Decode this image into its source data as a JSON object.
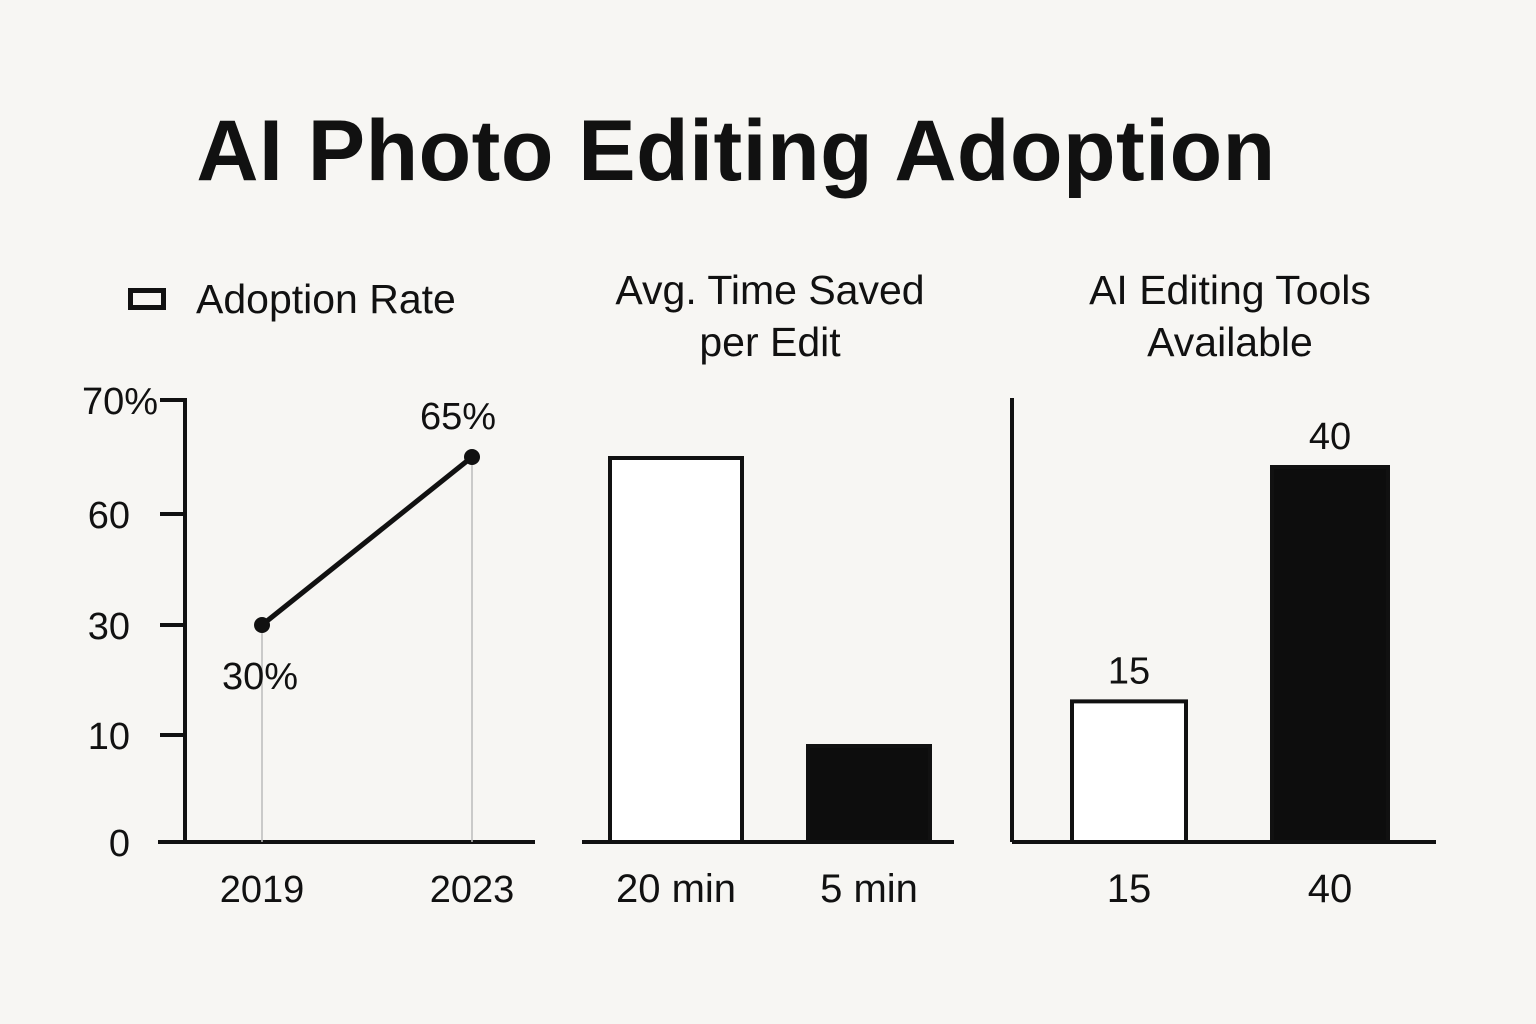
{
  "title": "AI Photo Editing Adoption",
  "chart_data": [
    {
      "type": "line",
      "legend": {
        "label": "Adoption Rate",
        "placement": "top-left"
      },
      "y_ticks": [
        "0",
        "10",
        "30",
        "60",
        "70%"
      ],
      "y_tick_values": [
        0,
        10,
        30,
        60,
        70
      ],
      "x": [
        "2019",
        "2023"
      ],
      "series": [
        {
          "name": "Adoption Rate",
          "values": [
            30,
            65
          ],
          "labels": [
            "30%",
            "65%"
          ]
        }
      ],
      "ylim": [
        0,
        70
      ],
      "color": "#111111"
    },
    {
      "type": "bar",
      "title_lines": [
        "Avg. Time Saved",
        "per Edit"
      ],
      "categories": [
        "20 min",
        "5 min"
      ],
      "values": [
        20,
        5
      ],
      "fills": [
        "#ffffff",
        "#0d0d0d"
      ]
    },
    {
      "type": "bar",
      "title_lines": [
        "AI Editing Tools",
        "Available"
      ],
      "categories": [
        "15",
        "40"
      ],
      "values": [
        15,
        40
      ],
      "value_labels": [
        "15",
        "40"
      ],
      "fills": [
        "#ffffff",
        "#0d0d0d"
      ]
    }
  ]
}
